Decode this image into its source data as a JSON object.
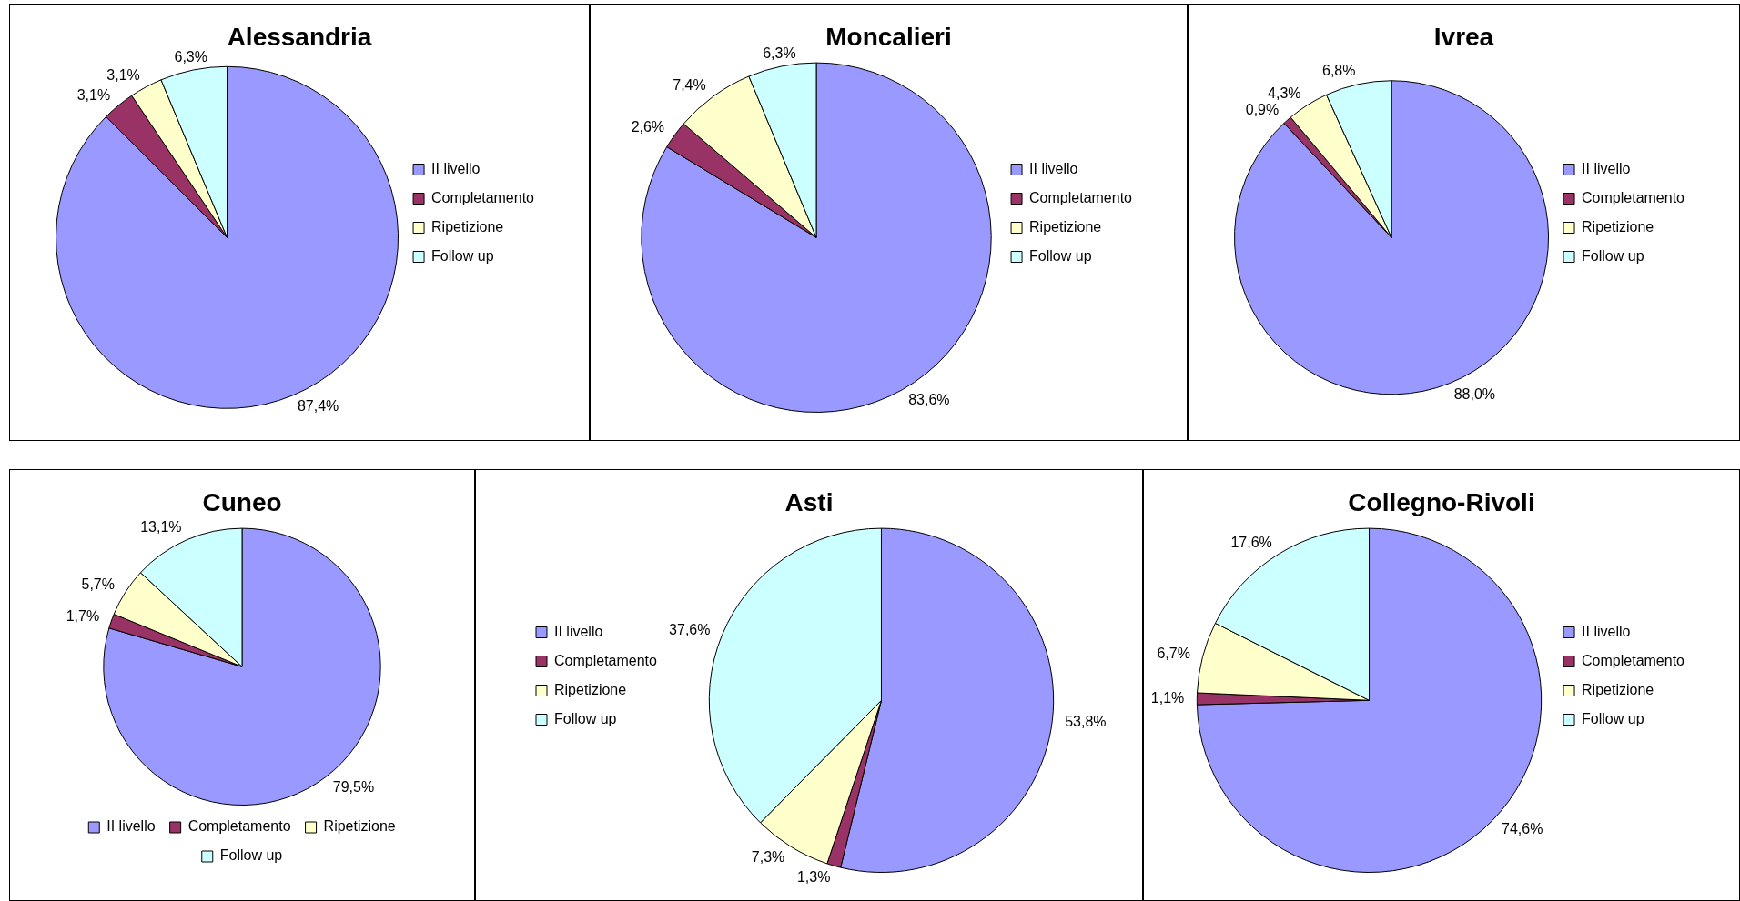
{
  "chart_data": [
    {
      "type": "pie",
      "title": "Alessandria",
      "categories": [
        "II livello",
        "Completamento",
        "Ripetizione",
        "Follow up"
      ],
      "values": [
        87.4,
        3.1,
        3.1,
        6.3
      ],
      "value_labels": [
        "87,4%",
        "3,1%",
        "3,1%",
        "6,3%"
      ],
      "colors": [
        "#9999ff",
        "#993366",
        "#ffffcc",
        "#ccffff"
      ],
      "legend": "right"
    },
    {
      "type": "pie",
      "title": "Moncalieri",
      "categories": [
        "II livello",
        "Completamento",
        "Ripetizione",
        "Follow up"
      ],
      "values": [
        83.6,
        2.6,
        7.4,
        6.3
      ],
      "value_labels": [
        "83,6%",
        "2,6%",
        "7,4%",
        "6,3%"
      ],
      "colors": [
        "#9999ff",
        "#993366",
        "#ffffcc",
        "#ccffff"
      ],
      "legend": "right"
    },
    {
      "type": "pie",
      "title": "Ivrea",
      "categories": [
        "II livello",
        "Completamento",
        "Ripetizione",
        "Follow up"
      ],
      "values": [
        88.0,
        0.9,
        4.3,
        6.8
      ],
      "value_labels": [
        "88,0%",
        "0,9%",
        "4,3%",
        "6,8%"
      ],
      "colors": [
        "#9999ff",
        "#993366",
        "#ffffcc",
        "#ccffff"
      ],
      "legend": "right"
    },
    {
      "type": "pie",
      "title": "Cuneo",
      "categories": [
        "II livello",
        "Completamento",
        "Ripetizione",
        "Follow up"
      ],
      "values": [
        79.5,
        1.7,
        5.7,
        13.1
      ],
      "value_labels": [
        "79,5%",
        "1,7%",
        "5,7%",
        "13,1%"
      ],
      "colors": [
        "#9999ff",
        "#993366",
        "#ffffcc",
        "#ccffff"
      ],
      "legend": "bottom"
    },
    {
      "type": "pie",
      "title": "Asti",
      "categories": [
        "II livello",
        "Completamento",
        "Ripetizione",
        "Follow up"
      ],
      "values": [
        53.8,
        1.3,
        7.3,
        37.6
      ],
      "value_labels": [
        "53,8%",
        "1,3%",
        "7,3%",
        "37,6%"
      ],
      "colors": [
        "#9999ff",
        "#993366",
        "#ffffcc",
        "#ccffff"
      ],
      "legend": "left"
    },
    {
      "type": "pie",
      "title": "Collegno-Rivoli",
      "categories": [
        "II livello",
        "Completamento",
        "Ripetizione",
        "Follow up"
      ],
      "values": [
        74.6,
        1.1,
        6.7,
        17.6
      ],
      "value_labels": [
        "74,6%",
        "1,1%",
        "6,7%",
        "17,6%"
      ],
      "colors": [
        "#9999ff",
        "#993366",
        "#ffffcc",
        "#ccffff"
      ],
      "legend": "right"
    }
  ]
}
